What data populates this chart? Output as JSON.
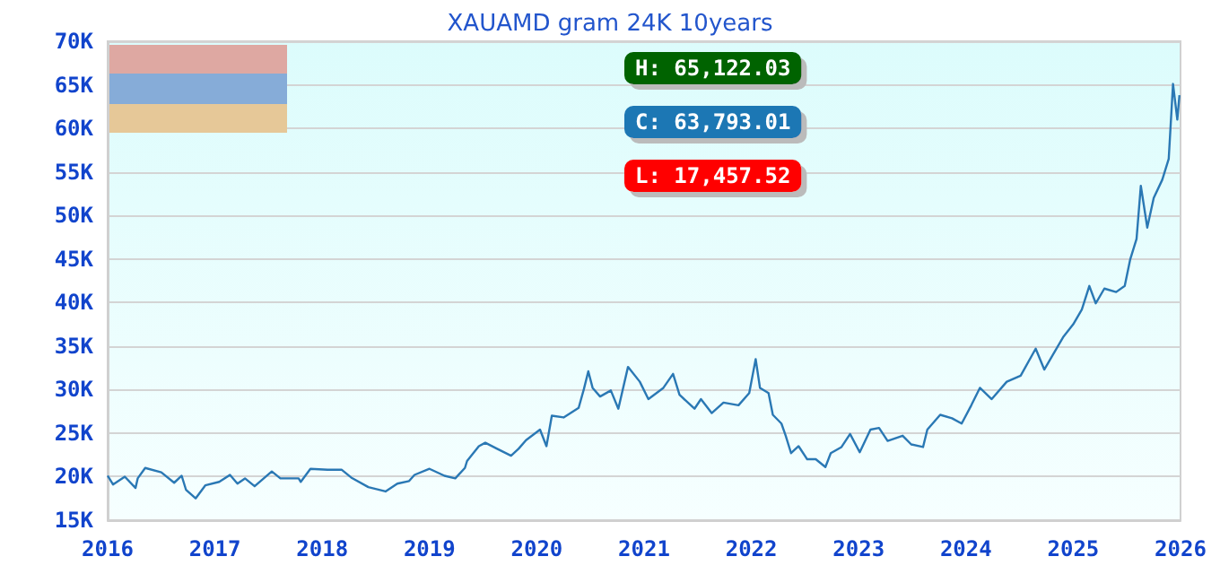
{
  "chart_data": {
    "type": "line",
    "title": "XAUAMD gram 24K 10years",
    "annotations": [
      "H: 65,122.03",
      "C: 63,793.01",
      "L: 17,457.52"
    ],
    "x": [
      2016.0,
      2016.05,
      2016.16,
      2016.26,
      2016.28,
      2016.35,
      2016.5,
      2016.62,
      2016.69,
      2016.73,
      2016.82,
      2016.91,
      2017.04,
      2017.14,
      2017.21,
      2017.28,
      2017.37,
      2017.53,
      2017.61,
      2017.78,
      2017.8,
      2017.89,
      2018.05,
      2018.18,
      2018.27,
      2018.43,
      2018.59,
      2018.7,
      2018.81,
      2018.86,
      2019.0,
      2019.14,
      2019.24,
      2019.33,
      2019.35,
      2019.46,
      2019.52,
      2019.63,
      2019.76,
      2019.83,
      2019.9,
      2020.03,
      2020.09,
      2020.14,
      2020.25,
      2020.39,
      2020.44,
      2020.48,
      2020.52,
      2020.59,
      2020.69,
      2020.76,
      2020.85,
      2020.96,
      2021.04,
      2021.18,
      2021.27,
      2021.33,
      2021.47,
      2021.53,
      2021.63,
      2021.74,
      2021.88,
      2021.98,
      2022.04,
      2022.08,
      2022.16,
      2022.2,
      2022.28,
      2022.32,
      2022.37,
      2022.44,
      2022.52,
      2022.6,
      2022.69,
      2022.74,
      2022.84,
      2022.92,
      2023.01,
      2023.11,
      2023.19,
      2023.27,
      2023.41,
      2023.49,
      2023.6,
      2023.64,
      2023.76,
      2023.87,
      2023.96,
      2024.05,
      2024.13,
      2024.24,
      2024.38,
      2024.51,
      2024.65,
      2024.73,
      2024.81,
      2024.91,
      2025.0,
      2025.08,
      2025.15,
      2025.21,
      2025.29,
      2025.4,
      2025.48,
      2025.53,
      2025.59,
      2025.63,
      2025.69,
      2025.75,
      2025.83,
      2025.89,
      2025.93,
      2025.97,
      2025.99
    ],
    "series": [
      {
        "color": "#2a78b4",
        "values": [
          20100,
          19100,
          20000,
          18700,
          19800,
          21000,
          20500,
          19300,
          20100,
          18500,
          17500,
          19000,
          19400,
          20200,
          19200,
          19800,
          18900,
          20600,
          19800,
          19800,
          19400,
          20900,
          20800,
          20800,
          19900,
          18800,
          18300,
          19200,
          19500,
          20200,
          20900,
          20100,
          19800,
          21000,
          21800,
          23500,
          23900,
          23200,
          22400,
          23200,
          24200,
          25400,
          23500,
          27000,
          26800,
          27900,
          30100,
          32100,
          30200,
          29200,
          29900,
          27800,
          32600,
          30900,
          28900,
          30200,
          31800,
          29400,
          27800,
          28900,
          27300,
          28500,
          28200,
          29600,
          33500,
          30200,
          29600,
          27100,
          26100,
          24700,
          22700,
          23500,
          22000,
          22000,
          21100,
          22700,
          23400,
          24900,
          22800,
          25400,
          25600,
          24100,
          24700,
          23700,
          23400,
          25400,
          27100,
          26700,
          26100,
          28200,
          30200,
          28900,
          30900,
          31600,
          34700,
          32300,
          34000,
          36100,
          37500,
          39200,
          41900,
          39900,
          41600,
          41200,
          41900,
          44900,
          47300,
          53400,
          48600,
          52000,
          54100,
          56500,
          65100,
          61000,
          63800
        ]
      }
    ],
    "xlim": [
      2016,
      2026
    ],
    "xticks": [
      2016,
      2017,
      2018,
      2019,
      2020,
      2021,
      2022,
      2023,
      2024,
      2025,
      2026
    ],
    "ylim": [
      15000,
      70000
    ],
    "yticks": [
      {
        "value": 15000,
        "label": "15K"
      },
      {
        "value": 20000,
        "label": "20K"
      },
      {
        "value": 25000,
        "label": "25K"
      },
      {
        "value": 30000,
        "label": "30K"
      },
      {
        "value": 35000,
        "label": "35K"
      },
      {
        "value": 40000,
        "label": "40K"
      },
      {
        "value": 45000,
        "label": "45K"
      },
      {
        "value": 50000,
        "label": "50K"
      },
      {
        "value": 55000,
        "label": "55K"
      },
      {
        "value": 60000,
        "label": "60K"
      },
      {
        "value": 65000,
        "label": "65K"
      },
      {
        "value": 70000,
        "label": "70K"
      }
    ],
    "grid": "y",
    "marker": "none",
    "line_style": "solid"
  }
}
